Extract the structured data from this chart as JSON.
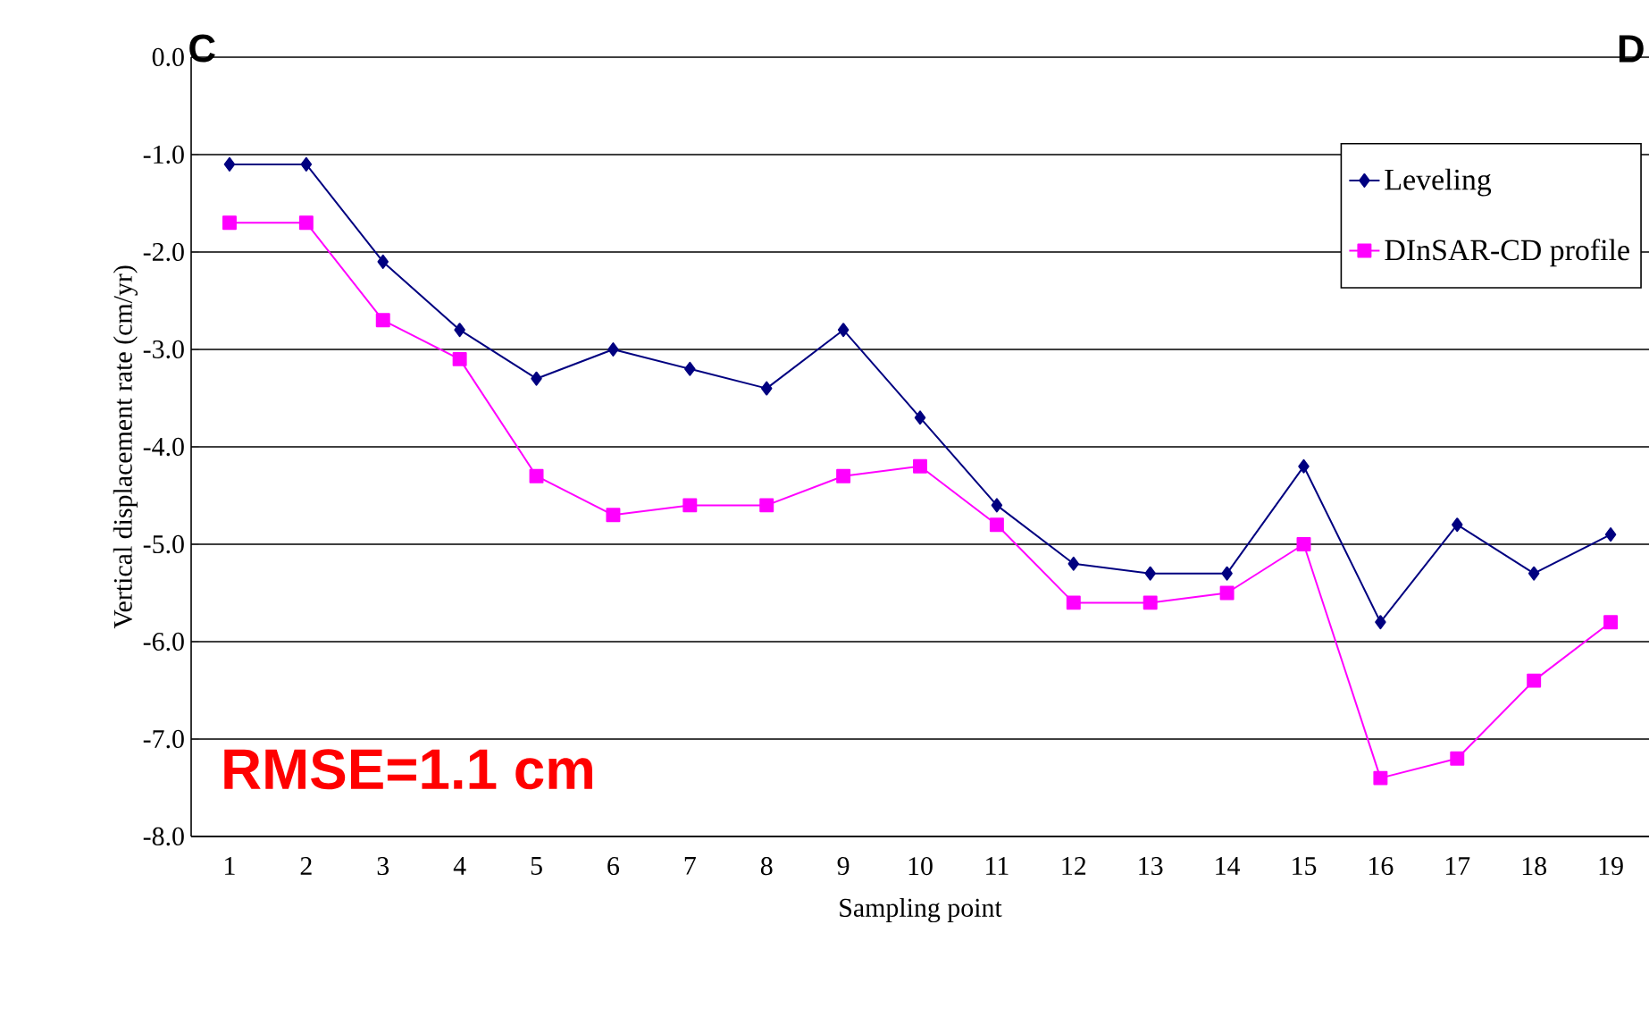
{
  "chart_data": {
    "type": "line",
    "xlabel": "Sampling point",
    "ylabel": "Vertical displacement rate (cm/yr)",
    "categories": [
      "1",
      "2",
      "3",
      "4",
      "5",
      "6",
      "7",
      "8",
      "9",
      "10",
      "11",
      "12",
      "13",
      "14",
      "15",
      "16",
      "17",
      "18",
      "19"
    ],
    "series": [
      {
        "name": "Leveling",
        "color": "#000080",
        "marker": "diamond",
        "values": [
          -1.1,
          -1.1,
          -2.1,
          -2.8,
          -3.3,
          -3.0,
          -3.2,
          -3.4,
          -2.8,
          -3.7,
          -4.6,
          -5.2,
          -5.3,
          -5.3,
          -4.2,
          -5.8,
          -4.8,
          -5.3,
          -4.9
        ]
      },
      {
        "name": "DInSAR-CD profile",
        "color": "#ff00ff",
        "marker": "square",
        "values": [
          -1.7,
          -1.7,
          -2.7,
          -3.1,
          -4.3,
          -4.7,
          -4.6,
          -4.6,
          -4.3,
          -4.2,
          -4.8,
          -5.6,
          -5.6,
          -5.5,
          -5.0,
          -7.4,
          -7.2,
          -6.4,
          -5.8
        ]
      }
    ],
    "ylim": [
      -8,
      0
    ],
    "yticks": [
      {
        "value": 0,
        "label": "0.0"
      },
      {
        "value": -1,
        "label": "-1.0"
      },
      {
        "value": -2,
        "label": "-2.0"
      },
      {
        "value": -3,
        "label": "-3.0"
      },
      {
        "value": -4,
        "label": "-4.0"
      },
      {
        "value": -5,
        "label": "-5.0"
      },
      {
        "value": -6,
        "label": "-6.0"
      },
      {
        "value": -7,
        "label": "-7.0"
      },
      {
        "value": -8,
        "label": "-8.0"
      }
    ],
    "grid": "y",
    "legend": "top right",
    "line_style": "solid",
    "annotations": [
      "C",
      "D",
      "RMSE=1.1 cm"
    ]
  }
}
